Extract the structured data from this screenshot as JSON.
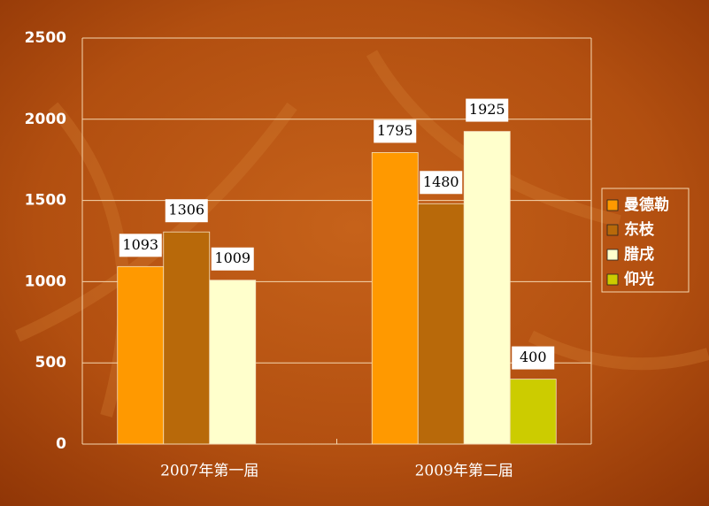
{
  "chart_data": {
    "type": "bar",
    "categories": [
      "2007年第一届",
      "2009年第二届"
    ],
    "series": [
      {
        "name": "曼德勒",
        "color": "#ff9900",
        "values": [
          1093,
          1795
        ]
      },
      {
        "name": "东枝",
        "color": "#b8690a",
        "values": [
          1306,
          1480
        ]
      },
      {
        "name": "腊戌",
        "color": "#ffffcc",
        "values": [
          1009,
          1925
        ]
      },
      {
        "name": "仰光",
        "color": "#cccc00",
        "values": [
          null,
          400
        ]
      }
    ],
    "ylim": [
      0,
      2500
    ],
    "yticks": [
      0,
      500,
      1000,
      1500,
      2000,
      2500
    ],
    "grid": true,
    "legend": "right",
    "data_labels": true
  }
}
